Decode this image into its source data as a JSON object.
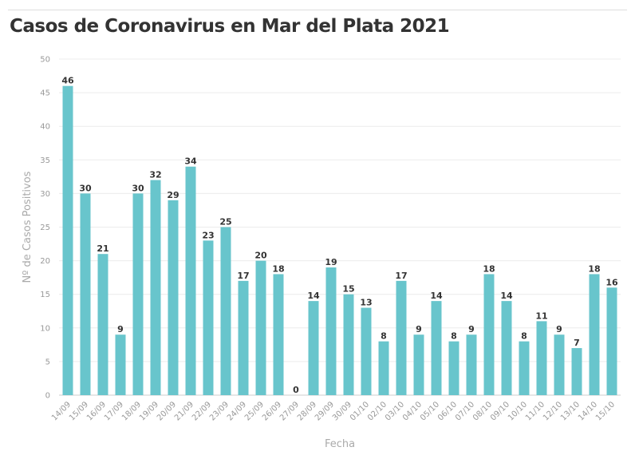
{
  "chart_data": {
    "type": "bar",
    "title": "Casos de Coronavirus en Mar del Plata 2021",
    "xlabel": "Fecha",
    "ylabel": "Nº de Casos Positivos",
    "ylim": [
      0,
      50
    ],
    "yticks": [
      0,
      5,
      10,
      15,
      20,
      25,
      30,
      35,
      40,
      45,
      50
    ],
    "grid": true,
    "bar_color": "#68c5cc",
    "categories": [
      "14/09",
      "15/09",
      "16/09",
      "17/09",
      "18/09",
      "19/09",
      "20/09",
      "21/09",
      "22/09",
      "23/09",
      "24/09",
      "25/09",
      "26/09",
      "27/09",
      "28/09",
      "29/09",
      "30/09",
      "01/10",
      "02/10",
      "03/10",
      "04/10",
      "05/10",
      "06/10",
      "07/10",
      "08/10",
      "09/10",
      "10/10",
      "11/10",
      "12/10",
      "13/10",
      "14/10",
      "15/10"
    ],
    "values": [
      46,
      30,
      21,
      9,
      30,
      32,
      29,
      34,
      23,
      25,
      17,
      20,
      18,
      0,
      14,
      19,
      15,
      13,
      8,
      17,
      9,
      14,
      8,
      9,
      18,
      14,
      8,
      11,
      9,
      7,
      18,
      16
    ]
  }
}
